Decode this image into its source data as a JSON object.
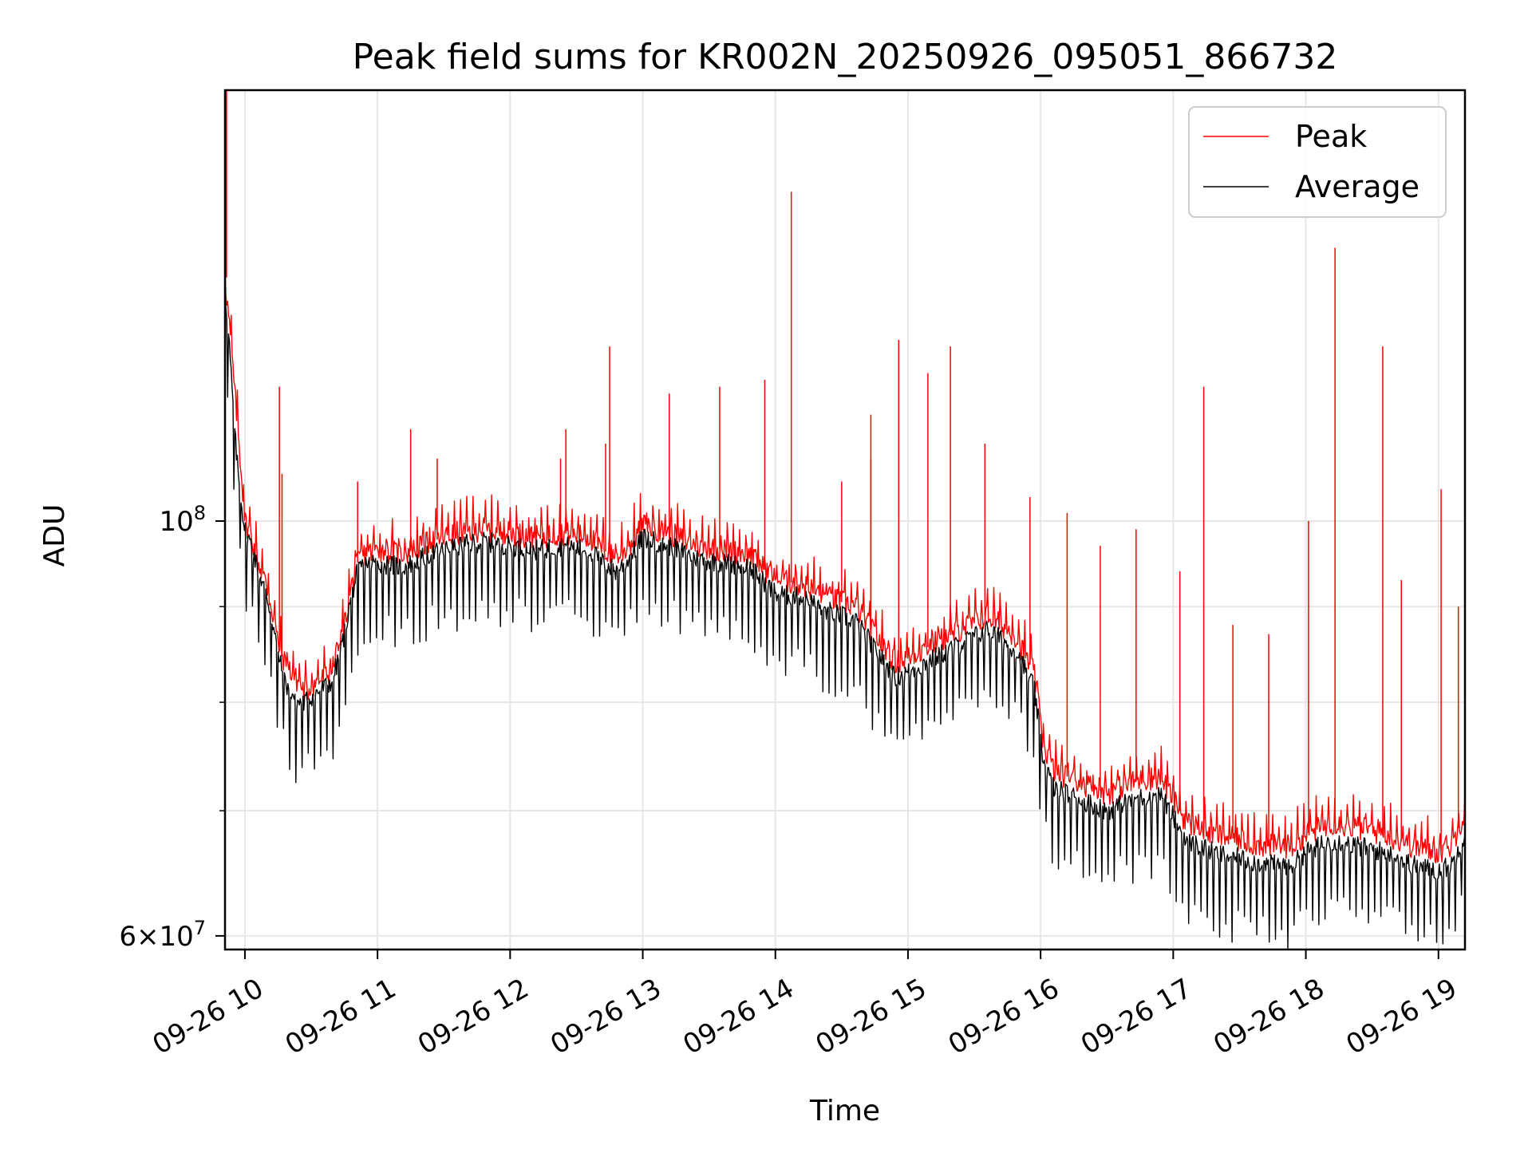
{
  "chart_data": {
    "type": "line",
    "title": "Peak field sums for KR002N_20250926_095051_866732",
    "xlabel": "Time",
    "ylabel": "ADU",
    "yscale": "log",
    "ylim": [
      59000000,
      170000000
    ],
    "xlim_hours": [
      9.85,
      19.2
    ],
    "grid": true,
    "legend_position": "top-right",
    "xticks": [
      {
        "hour": 10,
        "label": "09-26 10"
      },
      {
        "hour": 11,
        "label": "09-26 11"
      },
      {
        "hour": 12,
        "label": "09-26 12"
      },
      {
        "hour": 13,
        "label": "09-26 13"
      },
      {
        "hour": 14,
        "label": "09-26 14"
      },
      {
        "hour": 15,
        "label": "09-26 15"
      },
      {
        "hour": 16,
        "label": "09-26 16"
      },
      {
        "hour": 17,
        "label": "09-26 17"
      },
      {
        "hour": 18,
        "label": "09-26 18"
      },
      {
        "hour": 19,
        "label": "09-26 19"
      }
    ],
    "yticks_major": [
      {
        "value": 60000000,
        "label_mantissa": "6×10",
        "label_exp": "7"
      },
      {
        "value": 100000000,
        "label_mantissa": "10",
        "label_exp": "8"
      }
    ],
    "yticks_minor": [
      70000000,
      80000000,
      90000000
    ],
    "series": [
      {
        "name": "Peak",
        "color": "#ff0000",
        "hours": [
          9.85,
          9.88,
          9.92,
          9.96,
          10.0,
          10.05,
          10.1,
          10.15,
          10.2,
          10.25,
          10.3,
          10.35,
          10.4,
          10.45,
          10.5,
          10.55,
          10.6,
          10.65,
          10.7,
          10.75,
          10.8,
          10.85,
          10.9,
          11.0,
          11.2,
          11.4,
          11.6,
          11.8,
          12.0,
          12.2,
          12.4,
          12.6,
          12.7,
          12.8,
          12.9,
          13.0,
          13.2,
          13.4,
          13.6,
          13.8,
          14.0,
          14.2,
          14.4,
          14.6,
          14.8,
          14.9,
          15.0,
          15.2,
          15.4,
          15.6,
          15.8,
          15.95,
          16.02,
          16.1,
          16.3,
          16.5,
          16.7,
          16.9,
          17.0,
          17.1,
          17.3,
          17.5,
          17.7,
          17.9,
          18.0,
          18.2,
          18.4,
          18.6,
          18.8,
          19.0,
          19.1,
          19.2
        ],
        "values": [
          135000000,
          128000000,
          118000000,
          109000000,
          100000000,
          98000000,
          95000000,
          93000000,
          90000000,
          86000000,
          84000000,
          83000000,
          82000000,
          81000000,
          81500000,
          82000000,
          82500000,
          83000000,
          85000000,
          88000000,
          92000000,
          95000000,
          96000000,
          96500000,
          96000000,
          97500000,
          98500000,
          99000000,
          98500000,
          98000000,
          98500000,
          98000000,
          96500000,
          95500000,
          97000000,
          99500000,
          98500000,
          97000000,
          96500000,
          96000000,
          93000000,
          92500000,
          91000000,
          90000000,
          86000000,
          84000000,
          84500000,
          86000000,
          87500000,
          89000000,
          87000000,
          83000000,
          76000000,
          73500000,
          72500000,
          71500000,
          72500000,
          73000000,
          71000000,
          69000000,
          68000000,
          67500000,
          67000000,
          67000000,
          68000000,
          69000000,
          68500000,
          68000000,
          67000000,
          66500000,
          67000000,
          70000000
        ]
      },
      {
        "name": "Average",
        "color": "#000000",
        "hours": [
          9.85,
          9.88,
          9.92,
          9.96,
          10.0,
          10.05,
          10.1,
          10.15,
          10.2,
          10.25,
          10.3,
          10.35,
          10.4,
          10.45,
          10.5,
          10.55,
          10.6,
          10.65,
          10.7,
          10.75,
          10.8,
          10.85,
          10.9,
          11.0,
          11.2,
          11.4,
          11.6,
          11.8,
          12.0,
          12.2,
          12.4,
          12.6,
          12.7,
          12.8,
          12.9,
          13.0,
          13.2,
          13.4,
          13.6,
          13.8,
          14.0,
          14.2,
          14.4,
          14.6,
          14.8,
          14.9,
          15.0,
          15.2,
          15.4,
          15.6,
          15.8,
          15.95,
          16.02,
          16.1,
          16.3,
          16.5,
          16.7,
          16.9,
          17.0,
          17.1,
          17.3,
          17.5,
          17.7,
          17.9,
          18.0,
          18.2,
          18.4,
          18.6,
          18.8,
          19.0,
          19.1,
          19.2
        ],
        "values": [
          133000000,
          125000000,
          112000000,
          104000000,
          99000000,
          97000000,
          94000000,
          92000000,
          89000000,
          85000000,
          82000000,
          81000000,
          80000000,
          80000000,
          80500000,
          81000000,
          81500000,
          82000000,
          84000000,
          87000000,
          91000000,
          94000000,
          95000000,
          95000000,
          94500000,
          96000000,
          97000000,
          97500000,
          97000000,
          96500000,
          97000000,
          96500000,
          95000000,
          94000000,
          95500000,
          98000000,
          97000000,
          95500000,
          95000000,
          94500000,
          91500000,
          91000000,
          89500000,
          88500000,
          84500000,
          82500000,
          83000000,
          84500000,
          86000000,
          87500000,
          85500000,
          81500000,
          74500000,
          72000000,
          71000000,
          70000000,
          71000000,
          71500000,
          69500000,
          67500000,
          66500000,
          66000000,
          65500000,
          65500000,
          66500000,
          67500000,
          67000000,
          66500000,
          65500000,
          65000000,
          65500000,
          68000000
        ]
      }
    ],
    "peak_spikes": [
      {
        "hour": 10.26,
        "value": 118000000
      },
      {
        "hour": 10.28,
        "value": 106000000
      },
      {
        "hour": 10.85,
        "value": 105000000
      },
      {
        "hour": 11.25,
        "value": 112000000
      },
      {
        "hour": 11.45,
        "value": 108000000
      },
      {
        "hour": 12.38,
        "value": 108000000
      },
      {
        "hour": 12.42,
        "value": 112000000
      },
      {
        "hour": 12.72,
        "value": 110000000
      },
      {
        "hour": 12.75,
        "value": 124000000
      },
      {
        "hour": 13.2,
        "value": 117000000
      },
      {
        "hour": 13.58,
        "value": 118000000
      },
      {
        "hour": 13.92,
        "value": 119000000
      },
      {
        "hour": 14.12,
        "value": 150000000
      },
      {
        "hour": 14.5,
        "value": 105000000
      },
      {
        "hour": 14.72,
        "value": 108000000
      },
      {
        "hour": 14.72,
        "value": 114000000
      },
      {
        "hour": 14.93,
        "value": 125000000
      },
      {
        "hour": 15.15,
        "value": 120000000
      },
      {
        "hour": 15.32,
        "value": 124000000
      },
      {
        "hour": 15.58,
        "value": 110000000
      },
      {
        "hour": 15.92,
        "value": 103000000
      },
      {
        "hour": 16.2,
        "value": 101000000
      },
      {
        "hour": 16.45,
        "value": 97000000
      },
      {
        "hour": 16.72,
        "value": 99000000
      },
      {
        "hour": 17.05,
        "value": 94000000
      },
      {
        "hour": 17.23,
        "value": 118000000
      },
      {
        "hour": 17.45,
        "value": 88000000
      },
      {
        "hour": 17.72,
        "value": 87000000
      },
      {
        "hour": 18.02,
        "value": 100000000
      },
      {
        "hour": 18.22,
        "value": 140000000
      },
      {
        "hour": 18.58,
        "value": 124000000
      },
      {
        "hour": 18.72,
        "value": 93000000
      },
      {
        "hour": 19.02,
        "value": 104000000
      },
      {
        "hour": 19.15,
        "value": 90000000
      }
    ],
    "start_spike": {
      "hour": 9.86,
      "value": 170000000
    }
  }
}
